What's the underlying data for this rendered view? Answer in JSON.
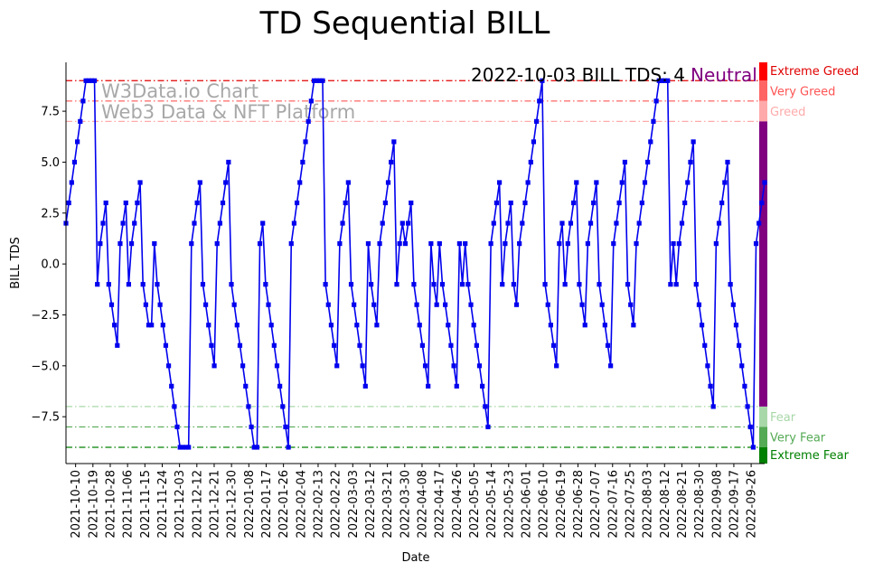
{
  "chart_data": {
    "type": "line",
    "title": "TD Sequential BILL",
    "xlabel": "Date",
    "ylabel": "BILL TDS",
    "ylim": [
      -9.8,
      9.9
    ],
    "yticks": [
      -7.5,
      -5.0,
      -2.5,
      0.0,
      2.5,
      5.0,
      7.5
    ],
    "ytick_labels": [
      "−7.5",
      "−5.0",
      "−2.5",
      "0.0",
      "2.5",
      "5.0",
      "7.5"
    ],
    "x_start": "2021-10-05",
    "x_end": "2022-10-03",
    "xtick_labels": [
      "2021-10-10",
      "2021-10-19",
      "2021-10-28",
      "2021-11-06",
      "2021-11-15",
      "2021-11-24",
      "2021-12-03",
      "2021-12-12",
      "2021-12-21",
      "2021-12-30",
      "2022-01-08",
      "2022-01-17",
      "2022-01-26",
      "2022-02-04",
      "2022-02-13",
      "2022-02-22",
      "2022-03-03",
      "2022-03-12",
      "2022-03-21",
      "2022-03-30",
      "2022-04-08",
      "2022-04-17",
      "2022-04-26",
      "2022-05-05",
      "2022-05-14",
      "2022-05-23",
      "2022-06-01",
      "2022-06-10",
      "2022-06-19",
      "2022-06-28",
      "2022-07-07",
      "2022-07-16",
      "2022-07-25",
      "2022-08-03",
      "2022-08-12",
      "2022-08-21",
      "2022-08-30",
      "2022-09-08",
      "2022-09-17",
      "2022-09-26"
    ],
    "series": [
      {
        "name": "",
        "color": "#0000ee",
        "values": [
          2,
          3,
          4,
          5,
          6,
          7,
          8,
          9,
          9,
          9,
          9,
          -1,
          1,
          2,
          3,
          -1,
          -2,
          -3,
          -4,
          1,
          2,
          3,
          -1,
          1,
          2,
          3,
          4,
          -1,
          -2,
          -3,
          -3,
          1,
          -1,
          -2,
          -3,
          -4,
          -5,
          -6,
          -7,
          -8,
          -9,
          -9,
          -9,
          -9,
          1,
          2,
          3,
          4,
          -1,
          -2,
          -3,
          -4,
          -5,
          1,
          2,
          3,
          4,
          5,
          -1,
          -2,
          -3,
          -4,
          -5,
          -6,
          -7,
          -8,
          -9,
          -9,
          1,
          2,
          -1,
          -2,
          -3,
          -4,
          -5,
          -6,
          -7,
          -8,
          -9,
          1,
          2,
          3,
          4,
          5,
          6,
          7,
          8,
          9,
          9,
          9,
          9,
          -1,
          -2,
          -3,
          -4,
          -5,
          1,
          2,
          3,
          4,
          -1,
          -2,
          -3,
          -4,
          -5,
          -6,
          1,
          -1,
          -2,
          -3,
          1,
          2,
          3,
          4,
          5,
          6,
          -1,
          1,
          2,
          1,
          2,
          3,
          -1,
          -2,
          -3,
          -4,
          -5,
          -6,
          1,
          -1,
          -2,
          1,
          -1,
          -2,
          -3,
          -4,
          -5,
          -6,
          1,
          -1,
          1,
          -1,
          -2,
          -3,
          -4,
          -5,
          -6,
          -7,
          -8,
          1,
          2,
          3,
          4,
          -1,
          1,
          2,
          3,
          -1,
          -2,
          1,
          2,
          3,
          4,
          5,
          6,
          7,
          8,
          9,
          -1,
          -2,
          -3,
          -4,
          -5,
          1,
          2,
          -1,
          1,
          2,
          3,
          4,
          -1,
          -2,
          -3,
          1,
          2,
          3,
          4,
          -1,
          -2,
          -3,
          -4,
          -5,
          1,
          2,
          3,
          4,
          5,
          -1,
          -2,
          -3,
          1,
          2,
          3,
          4,
          5,
          6,
          7,
          8,
          9,
          9,
          9,
          9,
          -1,
          1,
          -1,
          1,
          2,
          3,
          4,
          5,
          6,
          -1,
          -2,
          -3,
          -4,
          -5,
          -6,
          -7,
          1,
          2,
          3,
          4,
          5,
          -1,
          -2,
          -3,
          -4,
          -5,
          -6,
          -7,
          -8,
          -9,
          1,
          2,
          3,
          4
        ]
      }
    ],
    "thresholds": [
      {
        "label": "Extreme Greed",
        "value": 9,
        "color": "#e00000",
        "band_color": "#ff0000",
        "band": [
          9,
          9.9
        ]
      },
      {
        "label": "Very Greed",
        "value": 8,
        "color": "#ff5555",
        "band_color": "#ff6464",
        "band": [
          8,
          9
        ]
      },
      {
        "label": "Greed",
        "value": 7,
        "color": "#ffaaaa",
        "band_color": "#ffaaaa",
        "band": [
          7,
          8
        ]
      },
      {
        "label": "Fear",
        "value": -7,
        "color": "#a8d8a8",
        "band_color": "#a8d8a8",
        "band": [
          -8,
          -7
        ]
      },
      {
        "label": "Very Fear",
        "value": -8,
        "color": "#55aa55",
        "band_color": "#55aa55",
        "band": [
          -9,
          -8
        ]
      },
      {
        "label": "Extreme Fear",
        "value": -9,
        "color": "#008000",
        "band_color": "#008000",
        "band": [
          -9.8,
          -9
        ]
      }
    ],
    "neutral_band": {
      "band": [
        -7,
        7
      ],
      "color": "#800080"
    },
    "annotation": {
      "text": "2022-10-03 BILL TDS: 4",
      "status": "Neutral",
      "status_color": "#800080"
    },
    "watermark": {
      "line1": "W3Data.io Chart",
      "line2": "Web3 Data & NFT Platform"
    },
    "grid": false
  }
}
